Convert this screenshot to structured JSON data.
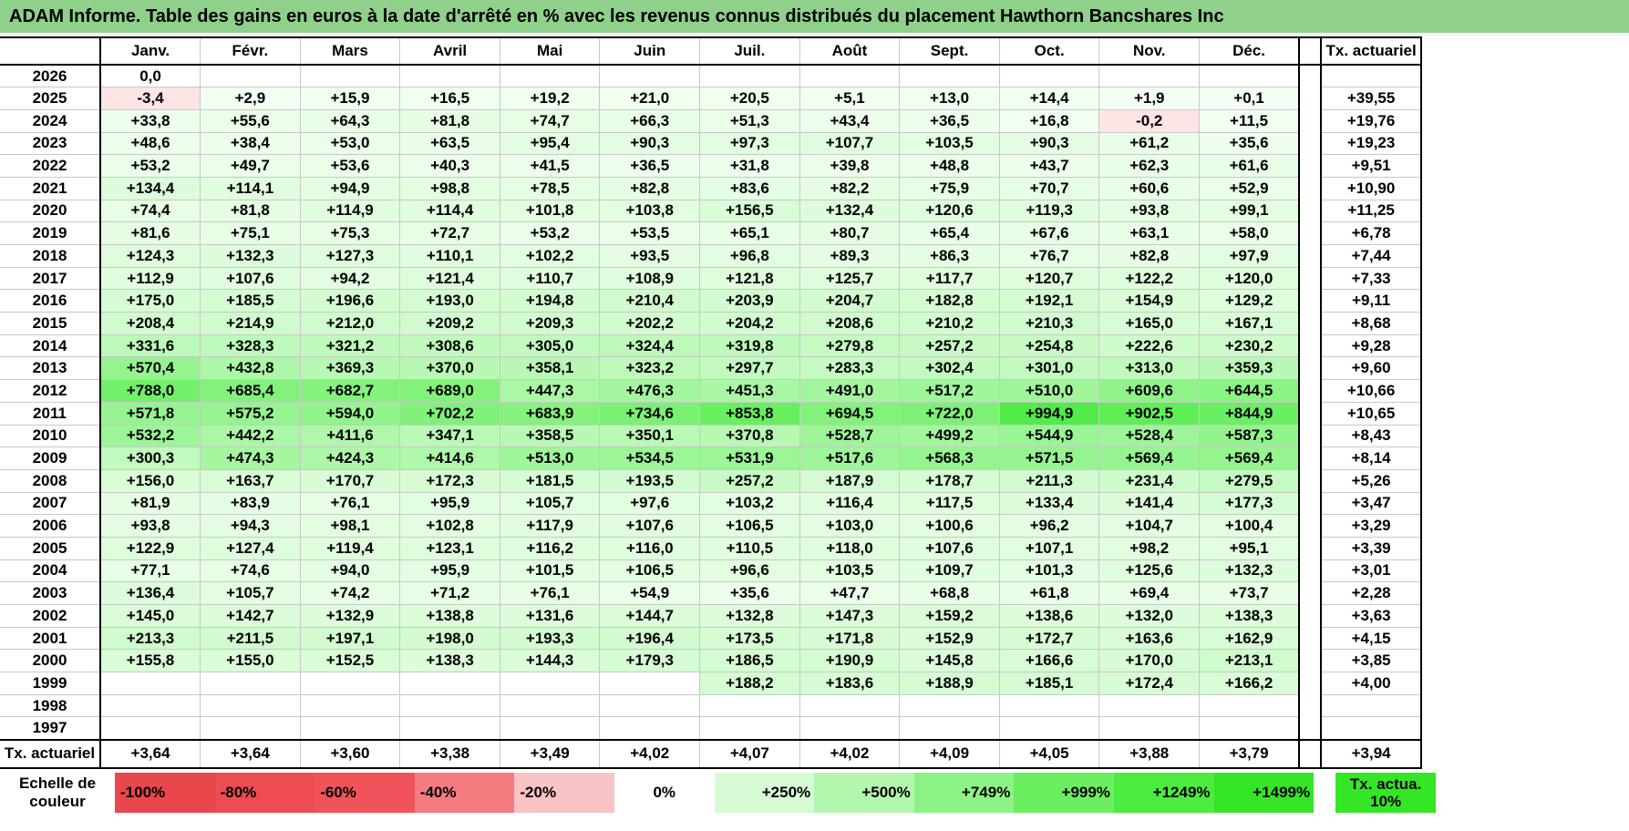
{
  "title": "ADAM Informe. Table des gains en euros à la date d'arrêté en % avec les revenus connus distribués du placement Hawthorn Bancshares Inc",
  "months": [
    "Janv.",
    "Févr.",
    "Mars",
    "Avril",
    "Mai",
    "Juin",
    "Juil.",
    "Août",
    "Sept.",
    "Oct.",
    "Nov.",
    "Déc."
  ],
  "rate_header": "Tx. actuariel",
  "rows": [
    {
      "year": "2026",
      "cells": [
        "0,0",
        "",
        "",
        "",
        "",
        "",
        "",
        "",
        "",
        "",
        "",
        ""
      ],
      "rate": ""
    },
    {
      "year": "2025",
      "cells": [
        "-3,4",
        "+2,9",
        "+15,9",
        "+16,5",
        "+19,2",
        "+21,0",
        "+20,5",
        "+5,1",
        "+13,0",
        "+14,4",
        "+1,9",
        "+0,1"
      ],
      "rate": "+39,55"
    },
    {
      "year": "2024",
      "cells": [
        "+33,8",
        "+55,6",
        "+64,3",
        "+81,8",
        "+74,7",
        "+66,3",
        "+51,3",
        "+43,4",
        "+36,5",
        "+16,8",
        "-0,2",
        "+11,5"
      ],
      "rate": "+19,76"
    },
    {
      "year": "2023",
      "cells": [
        "+48,6",
        "+38,4",
        "+53,0",
        "+63,5",
        "+95,4",
        "+90,3",
        "+97,3",
        "+107,7",
        "+103,5",
        "+90,3",
        "+61,2",
        "+35,6"
      ],
      "rate": "+19,23"
    },
    {
      "year": "2022",
      "cells": [
        "+53,2",
        "+49,7",
        "+53,6",
        "+40,3",
        "+41,5",
        "+36,5",
        "+31,8",
        "+39,8",
        "+48,8",
        "+43,7",
        "+62,3",
        "+61,6"
      ],
      "rate": "+9,51"
    },
    {
      "year": "2021",
      "cells": [
        "+134,4",
        "+114,1",
        "+94,9",
        "+98,8",
        "+78,5",
        "+82,8",
        "+83,6",
        "+82,2",
        "+75,9",
        "+70,7",
        "+60,6",
        "+52,9"
      ],
      "rate": "+10,90"
    },
    {
      "year": "2020",
      "cells": [
        "+74,4",
        "+81,8",
        "+114,9",
        "+114,4",
        "+101,8",
        "+103,8",
        "+156,5",
        "+132,4",
        "+120,6",
        "+119,3",
        "+93,8",
        "+99,1"
      ],
      "rate": "+11,25"
    },
    {
      "year": "2019",
      "cells": [
        "+81,6",
        "+75,1",
        "+75,3",
        "+72,7",
        "+53,2",
        "+53,5",
        "+65,1",
        "+80,7",
        "+65,4",
        "+67,6",
        "+63,1",
        "+58,0"
      ],
      "rate": "+6,78"
    },
    {
      "year": "2018",
      "cells": [
        "+124,3",
        "+132,3",
        "+127,3",
        "+110,1",
        "+102,2",
        "+93,5",
        "+96,8",
        "+89,3",
        "+86,3",
        "+76,7",
        "+82,8",
        "+97,9"
      ],
      "rate": "+7,44"
    },
    {
      "year": "2017",
      "cells": [
        "+112,9",
        "+107,6",
        "+94,2",
        "+121,4",
        "+110,7",
        "+108,9",
        "+121,8",
        "+125,7",
        "+117,7",
        "+120,7",
        "+122,2",
        "+120,0"
      ],
      "rate": "+7,33"
    },
    {
      "year": "2016",
      "cells": [
        "+175,0",
        "+185,5",
        "+196,6",
        "+193,0",
        "+194,8",
        "+210,4",
        "+203,9",
        "+204,7",
        "+182,8",
        "+192,1",
        "+154,9",
        "+129,2"
      ],
      "rate": "+9,11"
    },
    {
      "year": "2015",
      "cells": [
        "+208,4",
        "+214,9",
        "+212,0",
        "+209,2",
        "+209,3",
        "+202,2",
        "+204,2",
        "+208,6",
        "+210,2",
        "+210,3",
        "+165,0",
        "+167,1"
      ],
      "rate": "+8,68"
    },
    {
      "year": "2014",
      "cells": [
        "+331,6",
        "+328,3",
        "+321,2",
        "+308,6",
        "+305,0",
        "+324,4",
        "+319,8",
        "+279,8",
        "+257,2",
        "+254,8",
        "+222,6",
        "+230,2"
      ],
      "rate": "+9,28"
    },
    {
      "year": "2013",
      "cells": [
        "+570,4",
        "+432,8",
        "+369,3",
        "+370,0",
        "+358,1",
        "+323,2",
        "+297,7",
        "+283,3",
        "+302,4",
        "+301,0",
        "+313,0",
        "+359,3"
      ],
      "rate": "+9,60"
    },
    {
      "year": "2012",
      "cells": [
        "+788,0",
        "+685,4",
        "+682,7",
        "+689,0",
        "+447,3",
        "+476,3",
        "+451,3",
        "+491,0",
        "+517,2",
        "+510,0",
        "+609,6",
        "+644,5"
      ],
      "rate": "+10,66"
    },
    {
      "year": "2011",
      "cells": [
        "+571,8",
        "+575,2",
        "+594,0",
        "+702,2",
        "+683,9",
        "+734,6",
        "+853,8",
        "+694,5",
        "+722,0",
        "+994,9",
        "+902,5",
        "+844,9"
      ],
      "rate": "+10,65"
    },
    {
      "year": "2010",
      "cells": [
        "+532,2",
        "+442,2",
        "+411,6",
        "+347,1",
        "+358,5",
        "+350,1",
        "+370,8",
        "+528,7",
        "+499,2",
        "+544,9",
        "+528,4",
        "+587,3"
      ],
      "rate": "+8,43"
    },
    {
      "year": "2009",
      "cells": [
        "+300,3",
        "+474,3",
        "+424,3",
        "+414,6",
        "+513,0",
        "+534,5",
        "+531,9",
        "+517,6",
        "+568,3",
        "+571,5",
        "+569,4",
        "+569,4"
      ],
      "rate": "+8,14"
    },
    {
      "year": "2008",
      "cells": [
        "+156,0",
        "+163,7",
        "+170,7",
        "+172,3",
        "+181,5",
        "+193,5",
        "+257,2",
        "+187,9",
        "+178,7",
        "+211,3",
        "+231,4",
        "+279,5"
      ],
      "rate": "+5,26"
    },
    {
      "year": "2007",
      "cells": [
        "+81,9",
        "+83,9",
        "+76,1",
        "+95,9",
        "+105,7",
        "+97,6",
        "+103,2",
        "+116,4",
        "+117,5",
        "+133,4",
        "+141,4",
        "+177,3"
      ],
      "rate": "+3,47"
    },
    {
      "year": "2006",
      "cells": [
        "+93,8",
        "+94,3",
        "+98,1",
        "+102,8",
        "+117,9",
        "+107,6",
        "+106,5",
        "+103,0",
        "+100,6",
        "+96,2",
        "+104,7",
        "+100,4"
      ],
      "rate": "+3,29"
    },
    {
      "year": "2005",
      "cells": [
        "+122,9",
        "+127,4",
        "+119,4",
        "+123,1",
        "+116,2",
        "+116,0",
        "+110,5",
        "+118,0",
        "+107,6",
        "+107,1",
        "+98,2",
        "+95,1"
      ],
      "rate": "+3,39"
    },
    {
      "year": "2004",
      "cells": [
        "+77,1",
        "+74,6",
        "+94,0",
        "+95,9",
        "+101,5",
        "+106,5",
        "+96,6",
        "+103,5",
        "+109,7",
        "+101,3",
        "+125,6",
        "+132,3"
      ],
      "rate": "+3,01"
    },
    {
      "year": "2003",
      "cells": [
        "+136,4",
        "+105,7",
        "+74,2",
        "+71,2",
        "+76,1",
        "+54,9",
        "+35,6",
        "+47,7",
        "+68,8",
        "+61,8",
        "+69,4",
        "+73,7"
      ],
      "rate": "+2,28"
    },
    {
      "year": "2002",
      "cells": [
        "+145,0",
        "+142,7",
        "+132,9",
        "+138,8",
        "+131,6",
        "+144,7",
        "+132,8",
        "+147,3",
        "+159,2",
        "+138,6",
        "+132,0",
        "+138,3"
      ],
      "rate": "+3,63"
    },
    {
      "year": "2001",
      "cells": [
        "+213,3",
        "+211,5",
        "+197,1",
        "+198,0",
        "+193,3",
        "+196,4",
        "+173,5",
        "+171,8",
        "+152,9",
        "+172,7",
        "+163,6",
        "+162,9"
      ],
      "rate": "+4,15"
    },
    {
      "year": "2000",
      "cells": [
        "+155,8",
        "+155,0",
        "+152,5",
        "+138,3",
        "+144,3",
        "+179,3",
        "+186,5",
        "+190,9",
        "+145,8",
        "+166,6",
        "+170,0",
        "+213,1"
      ],
      "rate": "+3,85"
    },
    {
      "year": "1999",
      "cells": [
        "",
        "",
        "",
        "",
        "",
        "",
        "+188,2",
        "+183,6",
        "+188,9",
        "+185,1",
        "+172,4",
        "+166,2"
      ],
      "rate": "+4,00"
    },
    {
      "year": "1998",
      "cells": [
        "",
        "",
        "",
        "",
        "",
        "",
        "",
        "",
        "",
        "",
        "",
        ""
      ],
      "rate": ""
    },
    {
      "year": "1997",
      "cells": [
        "",
        "",
        "",
        "",
        "",
        "",
        "",
        "",
        "",
        "",
        "",
        ""
      ],
      "rate": ""
    }
  ],
  "footer": {
    "label": "Tx. actuariel",
    "cells": [
      "+3,64",
      "+3,64",
      "+3,60",
      "+3,38",
      "+3,49",
      "+4,02",
      "+4,07",
      "+4,02",
      "+4,09",
      "+4,05",
      "+3,88",
      "+3,79"
    ],
    "rate": "+3,94"
  },
  "legend": {
    "label": "Echelle de couleur",
    "swatches": [
      {
        "text": "-100%",
        "color": "#e8474c",
        "kind": "neg"
      },
      {
        "text": "-80%",
        "color": "#ec4c52",
        "kind": "neg"
      },
      {
        "text": "-60%",
        "color": "#f0545a",
        "kind": "neg"
      },
      {
        "text": "-40%",
        "color": "#f47c80",
        "kind": "neg"
      },
      {
        "text": "-20%",
        "color": "#fac3c5",
        "kind": "neg"
      },
      {
        "text": "0%",
        "color": "#ffffff",
        "kind": "zero"
      },
      {
        "text": "+250%",
        "color": "#d6fad4",
        "kind": "pos"
      },
      {
        "text": "+500%",
        "color": "#b3f7ae",
        "kind": "pos"
      },
      {
        "text": "+749%",
        "color": "#8ef386",
        "kind": "pos"
      },
      {
        "text": "+999%",
        "color": "#6bef60",
        "kind": "pos"
      },
      {
        "text": "+1249%",
        "color": "#4ceb3f",
        "kind": "pos"
      },
      {
        "text": "+1499%",
        "color": "#34e626",
        "kind": "pos"
      }
    ],
    "actua": {
      "text": "Tx. actua. 10%",
      "color": "#34e626"
    }
  },
  "colors": {
    "title_bg": "#8fd08a",
    "neg_light": "#fde4e5",
    "pos_scale_low": "#f3fff2",
    "pos_scale_high": "#34e626"
  }
}
